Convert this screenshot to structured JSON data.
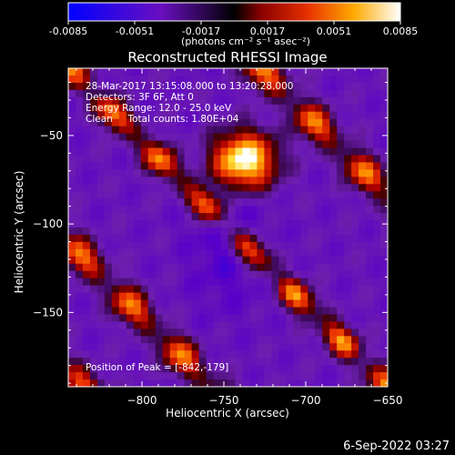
{
  "colorbar": {
    "ticks": [
      "-0.0085",
      "-0.0051",
      "-0.0017",
      "0.0017",
      "0.0051",
      "0.0085"
    ],
    "unit_label": "(photons cm⁻² s⁻¹ asec⁻²)"
  },
  "title": "Reconstructed RHESSI Image",
  "annotations": {
    "line1": "28-Mar-2017 13:15:08.000 to 13:20:28.000",
    "line2": "Detectors: 3F 6F, Att 0",
    "line3": "Energy Range: 12.0 - 25.0 keV",
    "line4": "Clean     Total counts: 1.80E+04",
    "peak": "Position of Peak = [-842,-179]"
  },
  "timestamp": "6-Sep-2022 03:27",
  "colors": {
    "background": "#000000",
    "colormap": [
      "#0000ff",
      "#5a00c8",
      "#6f1fb0",
      "#000000",
      "#b40000",
      "#ff5000",
      "#ffcc00",
      "#ffffff"
    ]
  },
  "chart_data": {
    "type": "heatmap",
    "title": "Reconstructed RHESSI Image",
    "xlabel": "Heliocentric X (arcsec)",
    "ylabel": "Heliocentric Y (arcsec)",
    "xlim": [
      -845,
      -650
    ],
    "ylim": [
      -192,
      -12
    ],
    "x_ticks": [
      -800,
      -750,
      -700,
      -650
    ],
    "y_ticks": [
      -50,
      -100,
      -150
    ],
    "x_tick_labels": [
      "−800",
      "−750",
      "−700",
      "−650"
    ],
    "y_tick_labels": [
      "−50",
      "−100",
      "−150"
    ],
    "value_range": [
      -0.0085,
      0.0085
    ],
    "source": {
      "x": -740,
      "y": -65
    },
    "peak": {
      "x": -842,
      "y": -179
    }
  }
}
